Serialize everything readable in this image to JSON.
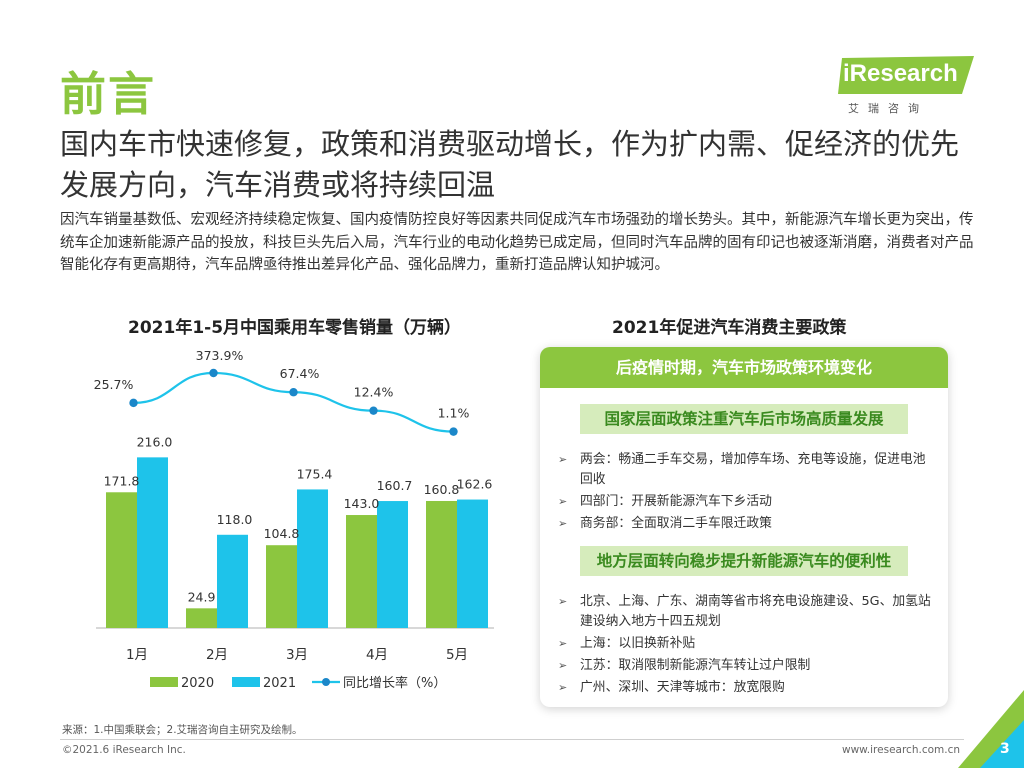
{
  "page_title": "前言",
  "logo": {
    "text": "iResearch",
    "sub": "艾瑞咨询"
  },
  "headline": "国内车市快速修复，政策和消费驱动增长，作为扩内需、促经济的优先发展方向，汽车消费或将持续回温",
  "intro": "因汽车销量基数低、宏观经济持续稳定恢复、国内疫情防控良好等因素共同促成汽车市场强劲的增长势头。其中，新能源汽车增长更为突出，传统车企加速新能源产品的投放，科技巨头先后入局，汽车行业的电动化趋势已成定局，但同时汽车品牌的固有印记也被逐渐消磨，消费者对产品智能化存有更高期待，汽车品牌亟待推出差异化产品、强化品牌力，重新打造品牌认知护城河。",
  "chart_section_title": "2021年1-5月中国乘用车零售销量（万辆）",
  "policy_section_title": "2021年促进汽车消费主要政策",
  "colors": {
    "green": "#8cc63f",
    "blue": "#1ec3ea",
    "dark_blue": "#1b87c9"
  },
  "chart_data": {
    "type": "bar",
    "title": "2021年1-5月中国乘用车零售销量（万辆）",
    "categories": [
      "1月",
      "2月",
      "3月",
      "4月",
      "5月"
    ],
    "series": [
      {
        "name": "2020",
        "type": "bar",
        "color": "#8cc63f",
        "values": [
          171.8,
          24.9,
          104.8,
          143.0,
          160.8
        ],
        "labels": [
          "171.8",
          "24.9",
          "104.8",
          "143.0",
          "160.8"
        ]
      },
      {
        "name": "2021",
        "type": "bar",
        "color": "#1ec3ea",
        "values": [
          216.0,
          118.0,
          175.4,
          160.7,
          162.6
        ],
        "labels": [
          "216.0",
          "118.0",
          "175.4",
          "160.7",
          "162.6"
        ]
      },
      {
        "name": "同比增长率（%）",
        "type": "line",
        "color": "#1ec3ea",
        "values": [
          25.7,
          373.9,
          67.4,
          12.4,
          1.1
        ],
        "labels": [
          "25.7%",
          "373.9%",
          "67.4%",
          "12.4%",
          "1.1%"
        ]
      }
    ],
    "legend": [
      "2020",
      "2021",
      "同比增长率（%）"
    ],
    "grid": false,
    "legend_position": "bottom"
  },
  "policy": {
    "header": "后疫情时期，汽车市场政策环境变化",
    "national_title": "国家层面政策注重汽车后市场高质量发展",
    "national_items": [
      "两会：畅通二手车交易，增加停车场、充电等设施，促进电池回收",
      "四部门：开展新能源汽车下乡活动",
      "商务部：全面取消二手车限迁政策"
    ],
    "local_title": "地方层面转向稳步提升新能源汽车的便利性",
    "local_items": [
      "北京、上海、广东、湖南等省市将充电设施建设、5G、加氢站建设纳入地方十四五规划",
      "上海：以旧换新补贴",
      "江苏：取消限制新能源汽车转让过户限制",
      "广州、深圳、天津等城市：放宽限购"
    ]
  },
  "source": "来源：1.中国乘联会；2.艾瑞咨询自主研究及绘制。",
  "copyright": "©2021.6 iResearch Inc.",
  "website": "www.iresearch.com.cn",
  "page_number": "3"
}
